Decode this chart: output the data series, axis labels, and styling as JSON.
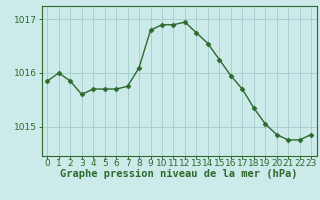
{
  "x": [
    0,
    1,
    2,
    3,
    4,
    5,
    6,
    7,
    8,
    9,
    10,
    11,
    12,
    13,
    14,
    15,
    16,
    17,
    18,
    19,
    20,
    21,
    22,
    23
  ],
  "y": [
    1015.85,
    1016.0,
    1015.85,
    1015.6,
    1015.7,
    1015.7,
    1015.7,
    1015.75,
    1016.1,
    1016.8,
    1016.9,
    1016.9,
    1016.95,
    1016.75,
    1016.55,
    1016.25,
    1015.95,
    1015.7,
    1015.35,
    1015.05,
    1014.85,
    1014.75,
    1014.75,
    1014.85
  ],
  "line_color": "#2d6a2d",
  "marker": "D",
  "markersize": 2.5,
  "bg_color": "#cceaea",
  "grid_color": "#a8d0d0",
  "axis_color": "#2d6a2d",
  "tick_label_color": "#2d6a2d",
  "xlabel": "Graphe pression niveau de la mer (hPa)",
  "xlabel_color": "#2d6a2d",
  "yticks": [
    1015,
    1016,
    1017
  ],
  "xlim": [
    -0.5,
    23.5
  ],
  "ylim": [
    1014.45,
    1017.25
  ],
  "tick_fontsize": 6.5,
  "xlabel_fontsize": 7.5
}
